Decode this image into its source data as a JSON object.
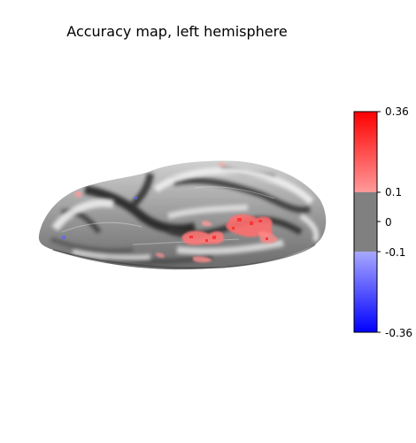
{
  "figure": {
    "title": "Accuracy map, left hemisphere"
  },
  "colorbar": {
    "min": -0.36,
    "max": 0.36,
    "threshold": 0.1,
    "ticks": [
      {
        "value": 0.36,
        "label": "0.36"
      },
      {
        "value": 0.1,
        "label": "0.1"
      },
      {
        "value": 0,
        "label": "0"
      },
      {
        "value": -0.1,
        "label": "-0.1"
      },
      {
        "value": -0.36,
        "label": "-0.36"
      }
    ],
    "colors": {
      "positive": "#ff0000",
      "negative": "#0000ff",
      "neutral": "#808080"
    }
  },
  "surface": {
    "view": "left hemisphere, inflated",
    "sulcal_colors": {
      "light": "#e6e6e6",
      "dark": "#2a2a2a"
    }
  }
}
